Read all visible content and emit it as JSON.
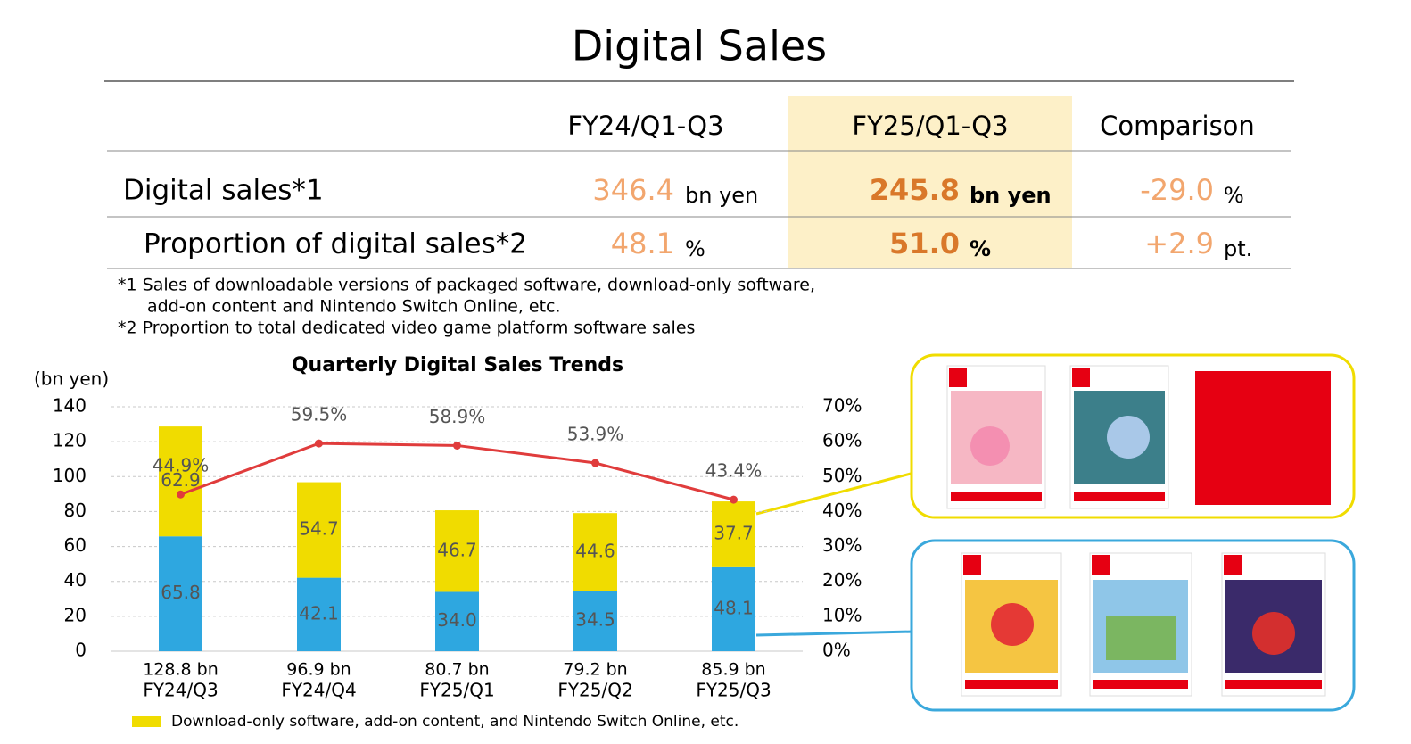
{
  "title": "Digital Sales",
  "table": {
    "columns": [
      "FY24/Q1-Q3",
      "FY25/Q1-Q3",
      "Comparison"
    ],
    "rows": [
      {
        "label": "Digital sales*1",
        "cells": [
          {
            "value": "346.4",
            "unit": "bn yen"
          },
          {
            "value": "245.8",
            "unit": "bn yen"
          },
          {
            "value": "-29.0",
            "unit": "%"
          }
        ]
      },
      {
        "label": "Proportion of digital sales*2",
        "cells": [
          {
            "value": "48.1",
            "unit": "%"
          },
          {
            "value": "51.0",
            "unit": "%"
          },
          {
            "value": "+2.9",
            "unit": "pt."
          }
        ]
      }
    ]
  },
  "footnotes": [
    "*1 Sales of downloadable versions of packaged software, download-only software,",
    "add-on content and Nintendo Switch Online, etc.",
    "*2 Proportion to total dedicated video game platform software sales"
  ],
  "chart_data": {
    "type": "bar",
    "stacked": true,
    "title": "Quarterly Digital Sales Trends",
    "y_label": "(bn yen)",
    "categories": [
      "FY24/Q3",
      "FY24/Q4",
      "FY25/Q1",
      "FY25/Q2",
      "FY25/Q3"
    ],
    "series": [
      {
        "color": "#2ea7e0",
        "values": [
          65.8,
          42.1,
          34.0,
          34.5,
          48.1
        ],
        "value_labels": [
          "65.8",
          "42.1",
          "34.0",
          "34.5",
          "48.1"
        ]
      },
      {
        "name": "Download-only software, add-on content, and Nintendo Switch Online, etc.",
        "color": "#f0dc00",
        "values": [
          62.9,
          54.7,
          46.7,
          44.6,
          37.7
        ]
      },
      {
        "type": "line",
        "axis": "y2",
        "color": "#e03c3c",
        "values": [
          44.9,
          59.5,
          58.9,
          53.9,
          43.4
        ],
        "value_labels": [
          "44.9%",
          "59.5%",
          "58.9%",
          "53.9%",
          "43.4%"
        ]
      }
    ],
    "totals": {
      "values": [
        128.8,
        96.9,
        80.7,
        79.2,
        85.9
      ],
      "value_labels": [
        "128.8 bn",
        "96.9 bn",
        "80.7 bn",
        "79.2 bn",
        "85.9 bn"
      ]
    },
    "ylim": [
      0,
      140
    ],
    "yticks": [
      0,
      20,
      40,
      60,
      80,
      100,
      120,
      140
    ],
    "y2lim": [
      0,
      70
    ],
    "y2ticks": [
      {
        "value": 0,
        "label": "0%"
      },
      {
        "value": 10,
        "label": "10%"
      },
      {
        "value": 20,
        "label": "20%"
      },
      {
        "value": 30,
        "label": "30%"
      },
      {
        "value": 40,
        "label": "40%"
      },
      {
        "value": 50,
        "label": "50%"
      },
      {
        "value": 60,
        "label": "60%"
      },
      {
        "value": 70,
        "label": "70%"
      }
    ],
    "grid": true,
    "legend": "bottom-left"
  }
}
